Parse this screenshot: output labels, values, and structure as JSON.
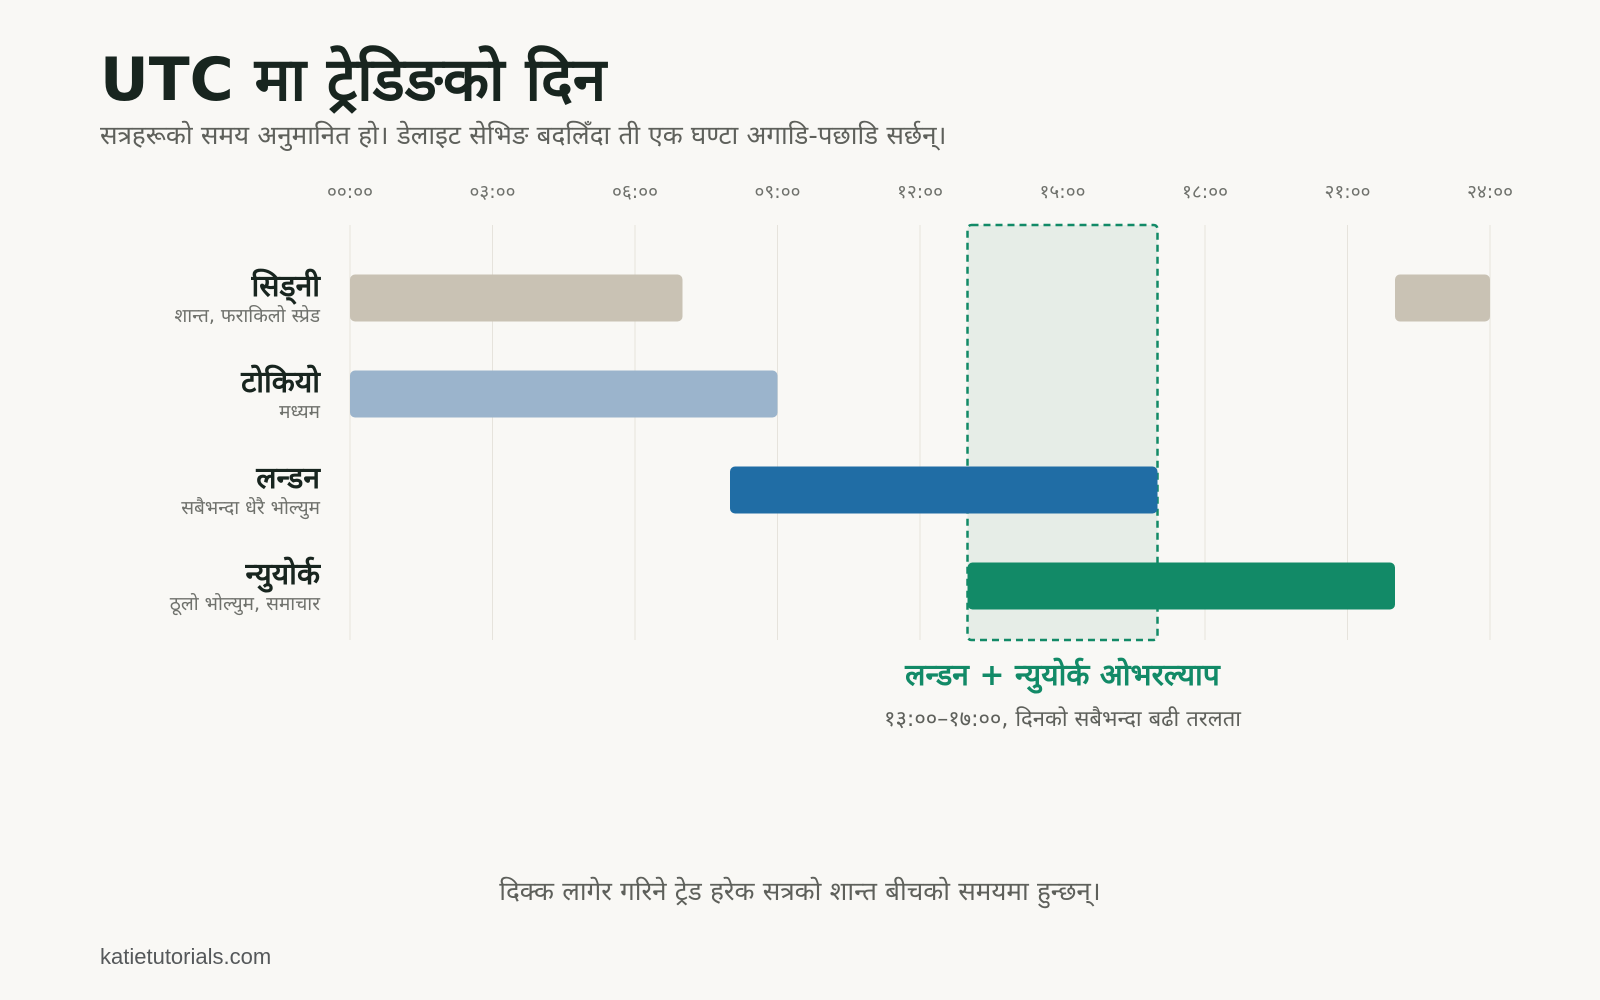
{
  "title": "UTC मा ट्रेडिङको दिन",
  "subtitle": "सत्रहरूको समय अनुमानित हो। डेलाइट सेभिङ बदलिँदा ती एक घण्टा अगाडि-पछाडि सर्छन्।",
  "footnote": "दिक्क लागेर गरिने ट्रेड हरेक सत्रको शान्त बीचको समयमा हुन्छन्।",
  "credit": "katietutorials.com",
  "chart_data": {
    "type": "gantt",
    "x_unit": "hour UTC",
    "xlim": [
      0,
      24
    ],
    "ticks": [
      {
        "value": 0,
        "label": "००:००"
      },
      {
        "value": 3,
        "label": "०३:००"
      },
      {
        "value": 6,
        "label": "०६:००"
      },
      {
        "value": 9,
        "label": "०९:००"
      },
      {
        "value": 12,
        "label": "१२:००"
      },
      {
        "value": 15,
        "label": "१५:००"
      },
      {
        "value": 18,
        "label": "१८:००"
      },
      {
        "value": 21,
        "label": "२१:००"
      },
      {
        "value": 24,
        "label": "२४:००"
      }
    ],
    "grid": true,
    "sessions": [
      {
        "name": "सिड्नी",
        "note": "शान्त, फराकिलो स्प्रेड",
        "color": "#c9c2b4",
        "intervals": [
          [
            0,
            7
          ],
          [
            22,
            24
          ]
        ]
      },
      {
        "name": "टोकियो",
        "note": "मध्यम",
        "color": "#9bb4cc",
        "intervals": [
          [
            0,
            9
          ]
        ]
      },
      {
        "name": "लन्डन",
        "note": "सबैभन्दा धेरै भोल्युम",
        "color": "#206da5",
        "intervals": [
          [
            8,
            17
          ]
        ]
      },
      {
        "name": "न्युयोर्क",
        "note": "ठूलो भोल्युम, समाचार",
        "color": "#128a67",
        "intervals": [
          [
            13,
            22
          ]
        ]
      }
    ],
    "overlap": {
      "start": 13,
      "end": 17,
      "label": "लन्डन + न्युयोर्क ओभरल्याप",
      "caption": "१३:००–१७:००, दिनको सबैभन्दा बढी तरलता",
      "color": "#128a67"
    }
  }
}
